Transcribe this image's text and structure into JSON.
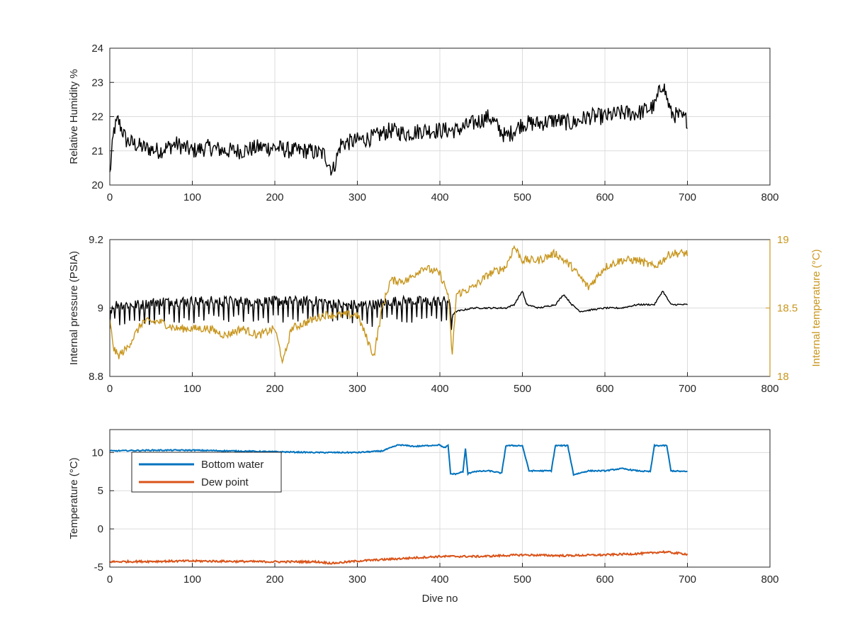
{
  "chart_data": [
    {
      "type": "line",
      "title": "",
      "xlabel": "",
      "ylabel": "Relative Humidity %",
      "xlim": [
        0,
        800
      ],
      "ylim": [
        20,
        24
      ],
      "xticks": [
        "0",
        "100",
        "200",
        "300",
        "400",
        "500",
        "600",
        "700",
        "800"
      ],
      "yticks": [
        "20",
        "21",
        "22",
        "23",
        "24"
      ],
      "grid": true,
      "series": [
        {
          "color": "#000000",
          "points": [
            [
              0,
              20.3
            ],
            [
              5,
              21.6
            ],
            [
              10,
              21.9
            ],
            [
              20,
              21.3
            ],
            [
              40,
              21.1
            ],
            [
              60,
              21.0
            ],
            [
              80,
              21.2
            ],
            [
              100,
              21.0
            ],
            [
              120,
              21.1
            ],
            [
              140,
              21.0
            ],
            [
              160,
              21.0
            ],
            [
              180,
              21.1
            ],
            [
              200,
              21.1
            ],
            [
              220,
              21.0
            ],
            [
              240,
              21.0
            ],
            [
              260,
              20.9
            ],
            [
              270,
              20.4
            ],
            [
              280,
              21.2
            ],
            [
              300,
              21.3
            ],
            [
              320,
              21.4
            ],
            [
              340,
              21.6
            ],
            [
              360,
              21.5
            ],
            [
              380,
              21.6
            ],
            [
              400,
              21.6
            ],
            [
              420,
              21.6
            ],
            [
              440,
              21.8
            ],
            [
              460,
              22.0
            ],
            [
              480,
              21.4
            ],
            [
              500,
              21.8
            ],
            [
              520,
              21.8
            ],
            [
              540,
              21.9
            ],
            [
              560,
              21.8
            ],
            [
              580,
              22.0
            ],
            [
              600,
              22.0
            ],
            [
              620,
              22.1
            ],
            [
              640,
              22.1
            ],
            [
              660,
              22.3
            ],
            [
              670,
              23.0
            ],
            [
              680,
              22.1
            ],
            [
              690,
              22.0
            ],
            [
              700,
              21.9
            ]
          ],
          "noise": 0.5
        }
      ]
    },
    {
      "type": "line",
      "title": "",
      "xlabel": "",
      "ylabel": "Internal pressure (PSIA)",
      "ylabel_right": "Internal temperature (°C)",
      "xlim": [
        0,
        800
      ],
      "ylim": [
        8.8,
        9.2
      ],
      "ylim_right": [
        18,
        19
      ],
      "xticks": [
        "0",
        "100",
        "200",
        "300",
        "400",
        "500",
        "600",
        "700",
        "800"
      ],
      "yticks": [
        "8.8",
        "9",
        "9.2"
      ],
      "yticks_right": [
        "18",
        "18.5",
        "19"
      ],
      "grid": true,
      "series": [
        {
          "color": "#000000",
          "axis": "left",
          "points": [
            [
              0,
              8.99
            ],
            [
              5,
              9.01
            ],
            [
              20,
              9.01
            ],
            [
              40,
              9.01
            ],
            [
              60,
              9.02
            ],
            [
              80,
              9.02
            ],
            [
              100,
              9.02
            ],
            [
              120,
              9.02
            ],
            [
              140,
              9.02
            ],
            [
              160,
              9.02
            ],
            [
              180,
              9.02
            ],
            [
              200,
              9.02
            ],
            [
              220,
              9.02
            ],
            [
              240,
              9.02
            ],
            [
              260,
              9.02
            ],
            [
              280,
              9.01
            ],
            [
              300,
              9.01
            ],
            [
              320,
              9.01
            ],
            [
              340,
              9.02
            ],
            [
              360,
              9.02
            ],
            [
              380,
              9.02
            ],
            [
              400,
              9.02
            ],
            [
              410,
              9.02
            ],
            [
              415,
              8.98
            ],
            [
              420,
              8.99
            ],
            [
              440,
              9.0
            ],
            [
              460,
              9.0
            ],
            [
              480,
              9.0
            ],
            [
              490,
              9.01
            ],
            [
              500,
              9.05
            ],
            [
              505,
              9.01
            ],
            [
              520,
              9.0
            ],
            [
              540,
              9.01
            ],
            [
              550,
              9.04
            ],
            [
              560,
              9.01
            ],
            [
              570,
              8.99
            ],
            [
              600,
              9.0
            ],
            [
              620,
              9.0
            ],
            [
              640,
              9.01
            ],
            [
              660,
              9.01
            ],
            [
              670,
              9.05
            ],
            [
              680,
              9.01
            ],
            [
              700,
              9.01
            ]
          ],
          "noise": 0.03,
          "noise_until": 415
        },
        {
          "color": "#c8961e",
          "axis": "right",
          "points": [
            [
              0,
              18.4
            ],
            [
              5,
              18.2
            ],
            [
              10,
              18.15
            ],
            [
              20,
              18.2
            ],
            [
              30,
              18.3
            ],
            [
              40,
              18.4
            ],
            [
              60,
              18.4
            ],
            [
              80,
              18.35
            ],
            [
              100,
              18.35
            ],
            [
              120,
              18.35
            ],
            [
              140,
              18.3
            ],
            [
              160,
              18.35
            ],
            [
              180,
              18.3
            ],
            [
              200,
              18.35
            ],
            [
              210,
              18.1
            ],
            [
              220,
              18.35
            ],
            [
              240,
              18.4
            ],
            [
              260,
              18.45
            ],
            [
              280,
              18.45
            ],
            [
              300,
              18.45
            ],
            [
              310,
              18.3
            ],
            [
              320,
              18.15
            ],
            [
              330,
              18.5
            ],
            [
              340,
              18.7
            ],
            [
              360,
              18.7
            ],
            [
              380,
              18.8
            ],
            [
              400,
              18.75
            ],
            [
              410,
              18.6
            ],
            [
              415,
              18.15
            ],
            [
              420,
              18.6
            ],
            [
              440,
              18.65
            ],
            [
              460,
              18.75
            ],
            [
              480,
              18.8
            ],
            [
              490,
              18.95
            ],
            [
              500,
              18.85
            ],
            [
              520,
              18.85
            ],
            [
              540,
              18.9
            ],
            [
              560,
              18.8
            ],
            [
              580,
              18.65
            ],
            [
              600,
              18.8
            ],
            [
              620,
              18.85
            ],
            [
              640,
              18.85
            ],
            [
              660,
              18.8
            ],
            [
              680,
              18.9
            ],
            [
              700,
              18.9
            ]
          ],
          "noise": 0.06
        }
      ]
    },
    {
      "type": "line",
      "title": "",
      "xlabel": "Dive no",
      "ylabel": "Temperature (°C)",
      "xlim": [
        0,
        800
      ],
      "ylim": [
        -5,
        13
      ],
      "xticks": [
        "0",
        "100",
        "200",
        "300",
        "400",
        "500",
        "600",
        "700",
        "800"
      ],
      "yticks": [
        "-5",
        "0",
        "5",
        "10"
      ],
      "grid": true,
      "legend": {
        "position": "top-left",
        "entries": [
          "Bottom water",
          "Dew point"
        ]
      },
      "series": [
        {
          "name": "Bottom water",
          "color": "#0072bd",
          "points": [
            [
              0,
              10.2
            ],
            [
              50,
              10.3
            ],
            [
              100,
              10.3
            ],
            [
              150,
              10.2
            ],
            [
              200,
              10.1
            ],
            [
              250,
              10.0
            ],
            [
              300,
              10.0
            ],
            [
              330,
              10.2
            ],
            [
              350,
              11.0
            ],
            [
              370,
              10.8
            ],
            [
              400,
              11.0
            ],
            [
              405,
              10.6
            ],
            [
              410,
              10.9
            ],
            [
              413,
              7.2
            ],
            [
              420,
              7.2
            ],
            [
              428,
              7.5
            ],
            [
              431,
              10.5
            ],
            [
              434,
              7.2
            ],
            [
              440,
              7.5
            ],
            [
              460,
              7.6
            ],
            [
              475,
              7.3
            ],
            [
              480,
              10.9
            ],
            [
              500,
              10.9
            ],
            [
              508,
              7.6
            ],
            [
              520,
              7.6
            ],
            [
              535,
              7.6
            ],
            [
              540,
              10.9
            ],
            [
              555,
              10.9
            ],
            [
              562,
              7.1
            ],
            [
              580,
              7.6
            ],
            [
              600,
              7.6
            ],
            [
              620,
              7.9
            ],
            [
              640,
              7.6
            ],
            [
              655,
              7.5
            ],
            [
              660,
              10.9
            ],
            [
              675,
              10.9
            ],
            [
              680,
              7.6
            ],
            [
              700,
              7.5
            ]
          ],
          "noise": 0.15
        },
        {
          "name": "Dew point",
          "color": "#d95319",
          "points": [
            [
              0,
              -4.3
            ],
            [
              100,
              -4.2
            ],
            [
              200,
              -4.3
            ],
            [
              250,
              -4.3
            ],
            [
              270,
              -4.5
            ],
            [
              300,
              -4.2
            ],
            [
              350,
              -3.9
            ],
            [
              400,
              -3.6
            ],
            [
              450,
              -3.6
            ],
            [
              500,
              -3.4
            ],
            [
              550,
              -3.5
            ],
            [
              600,
              -3.4
            ],
            [
              650,
              -3.2
            ],
            [
              670,
              -3.0
            ],
            [
              700,
              -3.3
            ]
          ],
          "noise": 0.25
        }
      ]
    }
  ]
}
